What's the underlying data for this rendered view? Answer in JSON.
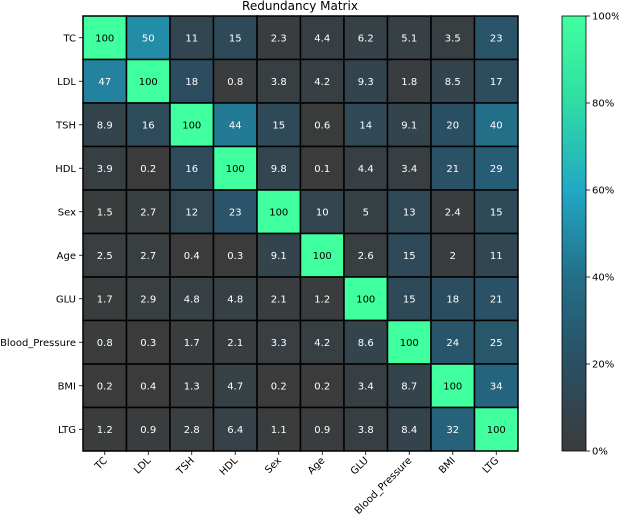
{
  "chart_data": {
    "type": "heatmap",
    "title": "Redundancy Matrix",
    "row_labels": [
      "TC",
      "LDL",
      "TSH",
      "HDL",
      "Sex",
      "Age",
      "GLU",
      "Blood_Pressure",
      "BMI",
      "LTG"
    ],
    "col_labels": [
      "TC",
      "LDL",
      "TSH",
      "HDL",
      "Sex",
      "Age",
      "GLU",
      "Blood_Pressure",
      "BMI",
      "LTG"
    ],
    "values": [
      [
        100,
        50,
        11,
        15,
        2.3,
        4.4,
        6.2,
        5.1,
        3.5,
        23
      ],
      [
        47,
        100,
        18,
        0.8,
        3.8,
        4.2,
        9.3,
        1.8,
        8.5,
        17
      ],
      [
        8.9,
        16,
        100,
        44,
        15,
        0.6,
        14,
        9.1,
        20,
        40
      ],
      [
        3.9,
        0.2,
        16,
        100,
        9.8,
        0.1,
        4.4,
        3.4,
        21,
        29
      ],
      [
        1.5,
        2.7,
        12,
        23,
        100,
        10,
        5,
        13,
        2.4,
        15
      ],
      [
        2.5,
        2.7,
        0.4,
        0.3,
        9.1,
        100,
        2.6,
        15,
        2,
        11
      ],
      [
        1.7,
        2.9,
        4.8,
        4.8,
        2.1,
        1.2,
        100,
        15,
        18,
        21
      ],
      [
        0.8,
        0.3,
        1.7,
        2.1,
        3.3,
        4.2,
        8.6,
        100,
        24,
        25
      ],
      [
        0.2,
        0.4,
        1.3,
        4.7,
        0.2,
        0.2,
        3.4,
        8.7,
        100,
        34
      ],
      [
        1.2,
        0.9,
        2.8,
        6.4,
        1.1,
        0.9,
        3.8,
        8.4,
        32,
        100
      ]
    ],
    "value_range": [
      0,
      100
    ],
    "colorbar": {
      "ticks": [
        "0%",
        "20%",
        "40%",
        "60%",
        "80%",
        "100%"
      ],
      "tick_values": [
        0,
        20,
        40,
        60,
        80,
        100
      ]
    },
    "colors": {
      "low": "#3b3b3b",
      "mid": "#20a0c0",
      "high": "#40ff9f"
    }
  }
}
